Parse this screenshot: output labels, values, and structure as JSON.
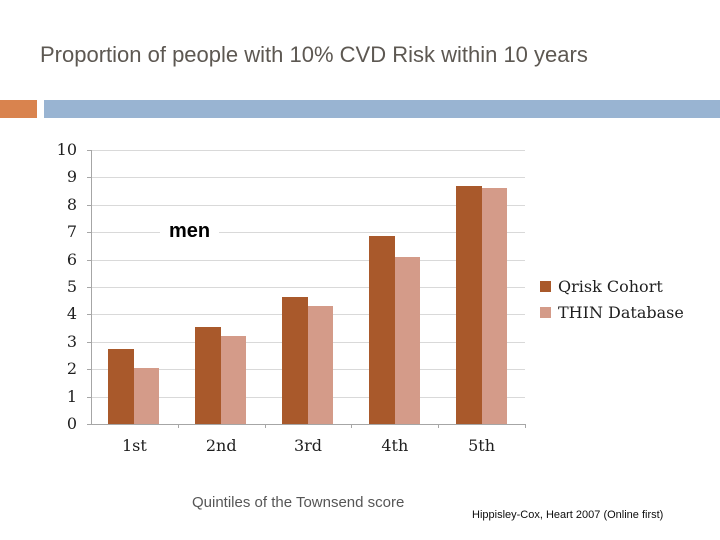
{
  "slide": {
    "title": "Proportion of people with 10% CVD Risk within 10 years",
    "attribution": "Hippisley-Cox, Heart 2007 (Online first)",
    "accent_orange": "#d9834e",
    "accent_blue": "#99b4d2"
  },
  "chart_data": {
    "type": "bar",
    "title": "",
    "annotation": "men",
    "categories": [
      "1st",
      "2nd",
      "3rd",
      "4th",
      "5th"
    ],
    "series": [
      {
        "name": "Qrisk Cohort",
        "color": "#a9592b",
        "values": [
          2.75,
          3.55,
          4.65,
          6.85,
          8.7
        ]
      },
      {
        "name": "THIN Database",
        "color": "#d49b89",
        "values": [
          2.05,
          3.2,
          4.3,
          6.1,
          8.6
        ]
      }
    ],
    "xlabel": "Quintiles of the Townsend score",
    "ylabel": "",
    "ylim": [
      0,
      10
    ],
    "ytick_step": 1,
    "grid": true,
    "legend_position": "right",
    "gridline_color": "#d9d9d9",
    "axis_color": "#a6a6a6"
  }
}
